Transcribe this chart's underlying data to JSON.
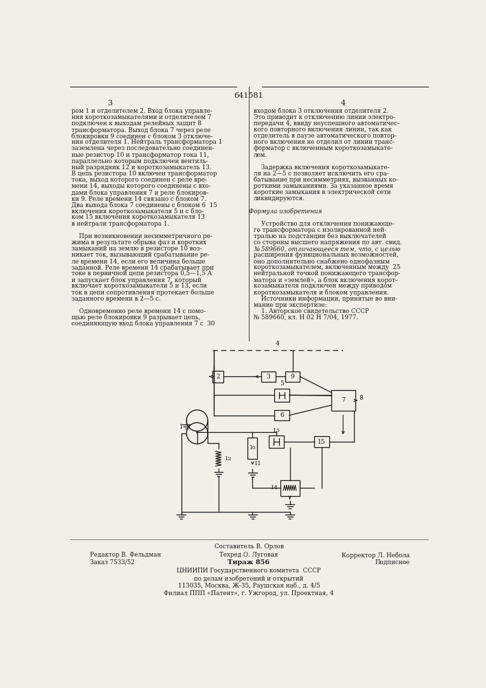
{
  "page_number": "641581",
  "col_left_num": "3",
  "col_right_num": "4",
  "bg_color": "#f2efe9",
  "text_color": "#1a1a1a",
  "left_col_text": [
    "ром 1 и отделителем 2. Вход блока управле-",
    "ния короткозамыкателями и отделителем 7",
    "подключен к выходам релейных защит 8",
    "трансформатора. Выход блока 7 через реле",
    "блокировки 9 соединен с блоком 3 отключе-",
    "ния отделителя 1. Нейтраль трансформатора 1",
    "заземлена через последовательно соединен-",
    "ные резистор 10 и трансформатор тока 11,",
    "параллельно которым подключен вентиль-",
    "ный разрядник 12 и короткозамыкатель 13.",
    "В цепь резистора 10 включен трансформатор",
    "тока, выход которого соединен с реле вре-",
    "мени 14, выходы которого соединены с вхо-",
    "дами блока управления 7 и реле блокиров-",
    "ки 9. Реле времени 14 связано с блоком 7.",
    "Два выхода блока 7 соединены с блоком 6  15",
    "включения короткозамыкателя 5 и с бло-",
    "ком 15 включения короткозамыкателя 13",
    "в нейтрали трансформатора 1.",
    "",
    "    При возникновении несимметричного ре-",
    "жима в результате обрыва фаз и коротких",
    "замыканий на землю в резисторе 10 воз-",
    "никает ток, вызывающий срабатывание ре-",
    "ле времени 14, если его величина больше",
    "заданной. Реле времени 14 срабатывает при",
    "токе в первичной цепи резистора 0,5—1,5 А",
    "и запускает блок управления 7, который",
    "включает короткозамыкатели 5 и 13, если",
    "ток в цепи сопротивления протекает больше",
    "заданного времени в 2—5 с.",
    "",
    "    Одновременно реле времени 14 с помо-",
    "щью реле блокировки 9 разрывает цепь,",
    "соединяющую вход блока управления 7 с  30"
  ],
  "right_col_text": [
    "входом блока 3 отключения отделителя 2.",
    "Это приводит к отключению линии электро-",
    "передачи 4, ввиду неуспешного автоматичес-",
    "кого повторного включения линии, так как",
    "отделитель в паузе автоматического повтор-",
    "ного включения не отделил от линии транс-",
    "форматор с включенным короткозамыкате-",
    "лем.",
    "",
    "    Задержка включения короткозамыкате-",
    "ля на 2—5 с позволяет исключить его сра-",
    "батывание при несимметриях, вызванных ко-",
    "роткими замыканиями. За указанное время",
    "короткие замыкания в электрической сети",
    "ликвидируются.",
    "",
    "Формула изобретения",
    "",
    "    Устройство для отключения понижающе-",
    "го трансформатора с изолированной ней-",
    "тралью на подстанции без выключателей",
    "со стороны высшего напряжения по авт. свид.",
    "№ 589660, отличающееся тем, что, с целью",
    "расширения функциональных возможностей,",
    "оно дополнительно снабжено однофазным",
    "короткозамыкателем, включенным между  25",
    "нейтральной точкой понижающего трансфор-",
    "матора и «землей», а блок включения корот-",
    "козамыкателя подключен между приводом",
    "короткозамыкателя и блоком управления.",
    "    Источники информации, принятые во вни-",
    "мание при экспертизе:",
    "    1. Авторское свидетельство СССР",
    "№ 589660, кл. Н 02 Н 7/04, 1977."
  ],
  "footer_line1": "Составитель В. Орлов",
  "footer_line2_left": "Редактор В. Фельдман",
  "footer_line2_center": "Техред О. Луговая",
  "footer_line2_right": "Корректор Л. Небола",
  "footer_line3_left": "Заказ 7533/52",
  "footer_line3_center": "Тираж 856",
  "footer_line3_right": "Подписное",
  "footer_line4": "ЦНИИПИ Государственного комитета  СССР",
  "footer_line5": "по делам изобретений и открытий",
  "footer_line6": "113035, Москва, Ж-35, Раушская наб., д. 4/5",
  "footer_line7": "Филиал ППП «Патент», г. Ужгород, ул. Проектная, 4"
}
